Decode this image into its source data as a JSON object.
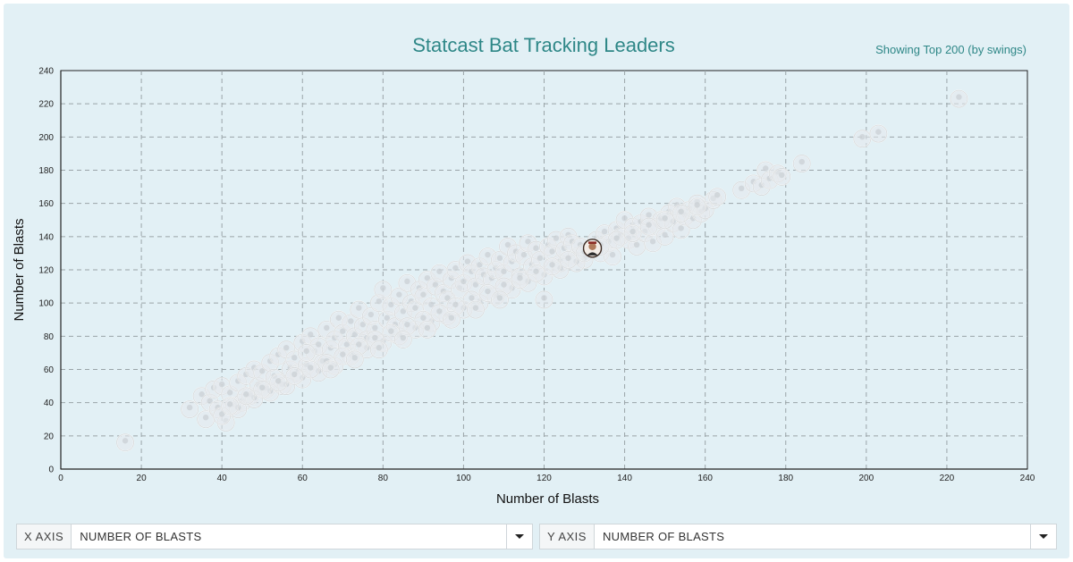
{
  "header": {
    "title": "Statcast Bat Tracking Leaders",
    "subtitle": "Showing Top 200 (by swings)"
  },
  "controls": {
    "x_axis": {
      "label": "X AXIS",
      "value": "NUMBER OF BLASTS"
    },
    "y_axis": {
      "label": "Y AXIS",
      "value": "NUMBER OF BLASTS"
    }
  },
  "colors": {
    "background": "#e2f0f5",
    "title": "#2e8787",
    "grid": "#9aa4a8",
    "bubble": "#e6eaec",
    "highlight": "#b07a5a"
  },
  "chart_data": {
    "type": "scatter",
    "title": "Statcast Bat Tracking Leaders",
    "xlabel": "Number of Blasts",
    "ylabel": "Number of Blasts",
    "xlim": [
      0,
      240
    ],
    "ylim": [
      0,
      240
    ],
    "xticks": [
      0,
      20,
      40,
      60,
      80,
      100,
      120,
      140,
      160,
      180,
      200,
      220,
      240
    ],
    "yticks": [
      0,
      20,
      40,
      60,
      80,
      100,
      120,
      140,
      160,
      180,
      200,
      220,
      240
    ],
    "grid": true,
    "x": [
      16,
      32,
      35,
      36,
      37,
      38,
      39,
      40,
      41,
      42,
      43,
      44,
      45,
      46,
      47,
      48,
      49,
      50,
      51,
      52,
      53,
      54,
      55,
      56,
      57,
      58,
      59,
      60,
      61,
      62,
      63,
      64,
      65,
      66,
      67,
      68,
      69,
      70,
      71,
      72,
      73,
      74,
      75,
      76,
      77,
      78,
      79,
      80,
      81,
      82,
      83,
      84,
      85,
      86,
      87,
      88,
      89,
      90,
      91,
      92,
      93,
      94,
      95,
      96,
      97,
      98,
      99,
      100,
      101,
      102,
      103,
      104,
      105,
      106,
      107,
      108,
      109,
      110,
      111,
      112,
      113,
      114,
      115,
      116,
      117,
      118,
      119,
      120,
      121,
      122,
      123,
      124,
      125,
      126,
      127,
      128,
      129,
      130,
      132,
      133,
      134,
      135,
      136,
      137,
      138,
      139,
      140,
      141,
      142,
      143,
      144,
      145,
      146,
      147,
      148,
      149,
      150,
      151,
      152,
      153,
      154,
      155,
      156,
      157,
      158,
      159,
      160,
      162,
      163,
      169,
      172,
      174,
      175,
      176,
      178,
      179,
      184,
      199,
      203,
      223,
      40,
      44,
      48,
      52,
      56,
      60,
      64,
      68,
      72,
      76,
      80,
      84,
      88,
      92,
      96,
      100,
      104,
      108,
      112,
      116,
      120,
      124,
      128,
      42,
      46,
      50,
      54,
      58,
      62,
      66,
      70,
      74,
      78,
      82,
      86,
      90,
      94,
      98,
      102,
      106,
      110,
      114,
      118,
      122,
      126,
      130,
      134,
      138,
      142,
      146,
      150,
      154,
      158,
      61,
      67,
      73,
      79,
      85,
      91,
      97,
      103,
      109
    ],
    "y": [
      16,
      36,
      44,
      30,
      40,
      48,
      36,
      50,
      28,
      45,
      38,
      52,
      40,
      56,
      44,
      60,
      50,
      58,
      48,
      64,
      55,
      68,
      50,
      72,
      60,
      66,
      58,
      76,
      62,
      80,
      70,
      74,
      64,
      84,
      72,
      78,
      90,
      82,
      74,
      88,
      80,
      96,
      86,
      78,
      92,
      84,
      100,
      108,
      90,
      98,
      86,
      104,
      94,
      112,
      100,
      96,
      108,
      104,
      114,
      98,
      110,
      118,
      106,
      102,
      114,
      120,
      108,
      112,
      124,
      118,
      110,
      122,
      116,
      128,
      114,
      120,
      126,
      118,
      134,
      124,
      130,
      116,
      128,
      136,
      122,
      132,
      126,
      102,
      134,
      130,
      138,
      124,
      132,
      140,
      136,
      128,
      134,
      126,
      133,
      138,
      130,
      142,
      136,
      128,
      144,
      140,
      150,
      138,
      146,
      134,
      148,
      142,
      152,
      136,
      146,
      150,
      140,
      154,
      148,
      158,
      144,
      152,
      156,
      150,
      160,
      154,
      156,
      162,
      164,
      168,
      172,
      170,
      180,
      174,
      178,
      176,
      184,
      199,
      202,
      223,
      32,
      36,
      42,
      46,
      50,
      54,
      58,
      62,
      68,
      72,
      76,
      80,
      84,
      88,
      92,
      96,
      100,
      104,
      108,
      112,
      116,
      120,
      124,
      38,
      44,
      48,
      52,
      56,
      60,
      64,
      68,
      74,
      78,
      82,
      86,
      90,
      94,
      98,
      102,
      106,
      110,
      114,
      118,
      122,
      126,
      130,
      134,
      138,
      142,
      146,
      150,
      154,
      158,
      70,
      60,
      66,
      72,
      78,
      84,
      90,
      96,
      102
    ],
    "highlight_index": 98
  }
}
